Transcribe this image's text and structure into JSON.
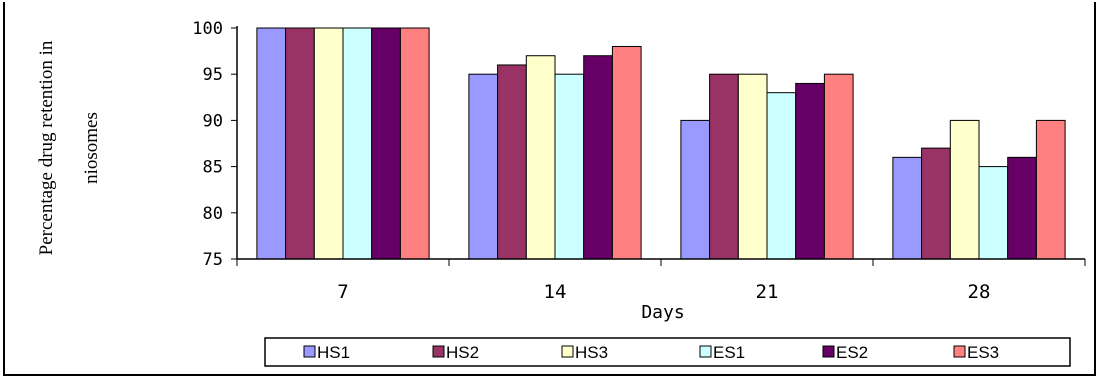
{
  "chart_data": {
    "type": "bar",
    "title": "",
    "ylabel_line1": "Percentage drug retention in",
    "ylabel_line2": "niosomes",
    "xlabel": "Days",
    "categories": [
      "7",
      "14",
      "21",
      "28"
    ],
    "ylim": [
      75,
      100
    ],
    "yticks": [
      75,
      80,
      85,
      90,
      95,
      100
    ],
    "grid": false,
    "legend_position": "bottom",
    "series": [
      {
        "name": "HS1",
        "color": "#9999ff",
        "values": [
          100,
          95,
          90,
          86
        ]
      },
      {
        "name": "HS2",
        "color": "#993366",
        "values": [
          100,
          96,
          95,
          87
        ]
      },
      {
        "name": "HS3",
        "color": "#ffffcc",
        "values": [
          100,
          97,
          95,
          90
        ]
      },
      {
        "name": "ES1",
        "color": "#ccffff",
        "values": [
          100,
          95,
          93,
          85
        ]
      },
      {
        "name": "ES2",
        "color": "#660066",
        "values": [
          100,
          97,
          94,
          86
        ]
      },
      {
        "name": "ES3",
        "color": "#ff8080",
        "values": [
          100,
          98,
          95,
          90
        ]
      }
    ]
  }
}
